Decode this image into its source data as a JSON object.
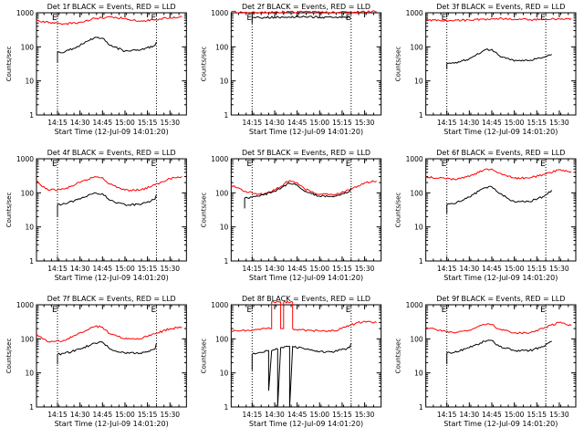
{
  "chart_data": [
    {
      "type": "line",
      "title": "Det 1f BLACK = Events, RED = LLD",
      "xlabel": "Start Time (12-Jul-09 14:01:20)",
      "ylabel": "Counts/sec",
      "yscale": "log",
      "ylim": [
        1,
        1000
      ],
      "ytick_labels": [
        "1",
        "10",
        "100",
        "1000"
      ],
      "xlim": [
        "14:01",
        "15:41"
      ],
      "xtick_labels": [
        "14:15",
        "14:30",
        "14:45",
        "15:00",
        "15:15",
        "15:30"
      ],
      "grid": false,
      "vlines": [
        "14:15",
        "15:21"
      ],
      "markers": [
        {
          "x": "14:15",
          "text": "E"
        },
        {
          "x": "15:21",
          "text": "E"
        }
      ],
      "series": [
        {
          "color": "#ff0000",
          "x": [
            "14:01",
            "14:10",
            "14:20",
            "14:30",
            "14:40",
            "14:50",
            "15:00",
            "15:10",
            "15:20",
            "15:30",
            "15:38"
          ],
          "y": [
            580,
            520,
            470,
            530,
            680,
            760,
            680,
            560,
            620,
            720,
            760
          ]
        },
        {
          "color": "#000000",
          "x": [
            "14:15",
            "14:15",
            "14:20",
            "14:30",
            "14:40",
            "14:45",
            "14:50",
            "15:00",
            "15:10",
            "15:20",
            "15:21"
          ],
          "y": [
            35,
            70,
            72,
            110,
            190,
            180,
            110,
            75,
            80,
            110,
            140
          ]
        }
      ]
    },
    {
      "type": "line",
      "title": "Det 2f BLACK = Events, RED = LLD",
      "xlabel": "Start Time (12-Jul-09 14:01:20)",
      "ylabel": "Counts/sec",
      "yscale": "log",
      "ylim": [
        1,
        1000
      ],
      "ytick_labels": [
        "1",
        "10",
        "100",
        "1000"
      ],
      "xlim": [
        "14:01",
        "15:41"
      ],
      "xtick_labels": [
        "14:15",
        "14:30",
        "14:45",
        "15:00",
        "15:15",
        "15:30"
      ],
      "grid": false,
      "vlines": [
        "14:15",
        "15:21"
      ],
      "markers": [
        {
          "x": "14:15",
          "text": "E"
        },
        {
          "x": "15:21",
          "text": "E"
        }
      ],
      "series": [
        {
          "color": "#ff0000",
          "x": [
            "14:01",
            "14:10",
            "14:20",
            "14:30",
            "14:40",
            "14:50",
            "15:00",
            "15:10",
            "15:20",
            "15:30",
            "15:38"
          ],
          "y": [
            1050,
            1020,
            1000,
            1030,
            1060,
            1080,
            1050,
            1020,
            1040,
            1060,
            1080
          ]
        },
        {
          "color": "#000000",
          "x": [
            "14:15",
            "14:15",
            "14:20",
            "14:30",
            "14:40",
            "14:50",
            "15:00",
            "15:10",
            "15:20",
            "15:21"
          ],
          "y": [
            480,
            720,
            720,
            740,
            750,
            760,
            740,
            730,
            740,
            650
          ]
        }
      ]
    },
    {
      "type": "line",
      "title": "Det 3f BLACK = Events, RED = LLD",
      "xlabel": "Start Time (12-Jul-09 14:01:20)",
      "ylabel": "Counts/sec",
      "yscale": "log",
      "ylim": [
        1,
        1000
      ],
      "ytick_labels": [
        "1",
        "10",
        "100",
        "1000"
      ],
      "xlim": [
        "14:01",
        "15:41"
      ],
      "xtick_labels": [
        "14:15",
        "14:30",
        "14:45",
        "15:00",
        "15:15",
        "15:30"
      ],
      "grid": false,
      "vlines": [
        "14:15",
        "15:21"
      ],
      "markers": [
        {
          "x": "14:15",
          "text": "E"
        },
        {
          "x": "15:21",
          "text": "E"
        }
      ],
      "series": [
        {
          "color": "#ff0000",
          "x": [
            "14:01",
            "14:10",
            "14:20",
            "14:30",
            "14:40",
            "14:50",
            "15:00",
            "15:10",
            "15:20",
            "15:30",
            "15:38"
          ],
          "y": [
            620,
            600,
            590,
            610,
            650,
            680,
            650,
            620,
            640,
            660,
            680
          ]
        },
        {
          "color": "#000000",
          "x": [
            "14:15",
            "14:15",
            "14:20",
            "14:30",
            "14:40",
            "14:45",
            "14:50",
            "15:00",
            "15:10",
            "15:20",
            "15:25"
          ],
          "y": [
            22,
            32,
            33,
            45,
            80,
            85,
            55,
            38,
            40,
            50,
            60
          ]
        }
      ]
    },
    {
      "type": "line",
      "title": "Det 4f BLACK = Events, RED = LLD",
      "xlabel": "Start Time (12-Jul-09 14:01:20)",
      "ylabel": "Counts/sec",
      "yscale": "log",
      "ylim": [
        1,
        1000
      ],
      "ytick_labels": [
        "1",
        "10",
        "100",
        "1000"
      ],
      "xlim": [
        "14:01",
        "15:41"
      ],
      "xtick_labels": [
        "14:15",
        "14:30",
        "14:45",
        "15:00",
        "15:15",
        "15:30"
      ],
      "grid": false,
      "vlines": [
        "14:15",
        "15:21"
      ],
      "markers": [
        {
          "x": "14:15",
          "text": "E"
        },
        {
          "x": "15:21",
          "text": "E"
        }
      ],
      "series": [
        {
          "color": "#ff0000",
          "x": [
            "14:01",
            "14:05",
            "14:10",
            "14:20",
            "14:30",
            "14:40",
            "14:45",
            "14:50",
            "15:00",
            "15:10",
            "15:20",
            "15:30",
            "15:38"
          ],
          "y": [
            220,
            150,
            120,
            130,
            200,
            300,
            280,
            180,
            120,
            120,
            170,
            260,
            300
          ]
        },
        {
          "color": "#000000",
          "x": [
            "14:15",
            "14:15",
            "14:20",
            "14:30",
            "14:40",
            "14:45",
            "14:50",
            "15:00",
            "15:10",
            "15:20",
            "15:21"
          ],
          "y": [
            20,
            45,
            48,
            65,
            100,
            95,
            60,
            45,
            45,
            65,
            90
          ]
        }
      ]
    },
    {
      "type": "line",
      "title": "Det 5f BLACK = Events, RED = LLD",
      "xlabel": "Start Time (12-Jul-09 14:01:20)",
      "ylabel": "Counts/sec",
      "yscale": "log",
      "ylim": [
        1,
        1000
      ],
      "ytick_labels": [
        "1",
        "10",
        "100",
        "1000"
      ],
      "xlim": [
        "14:01",
        "15:41"
      ],
      "xtick_labels": [
        "14:15",
        "14:30",
        "14:45",
        "15:00",
        "15:15",
        "15:30"
      ],
      "grid": false,
      "vlines": [
        "14:15",
        "15:21"
      ],
      "markers": [
        {
          "x": "14:15",
          "text": "E"
        },
        {
          "x": "15:21",
          "text": "E"
        }
      ],
      "series": [
        {
          "color": "#ff0000",
          "x": [
            "14:01",
            "14:05",
            "14:10",
            "14:20",
            "14:30",
            "14:40",
            "14:45",
            "14:50",
            "15:00",
            "15:10",
            "15:20",
            "15:30",
            "15:38"
          ],
          "y": [
            170,
            140,
            110,
            90,
            120,
            230,
            200,
            130,
            90,
            90,
            120,
            200,
            220
          ]
        },
        {
          "color": "#000000",
          "x": [
            "14:10",
            "14:10",
            "14:15",
            "14:20",
            "14:30",
            "14:40",
            "14:45",
            "14:50",
            "15:00",
            "15:10",
            "15:20",
            "15:21"
          ],
          "y": [
            35,
            70,
            75,
            80,
            110,
            190,
            170,
            110,
            80,
            80,
            110,
            140
          ]
        }
      ]
    },
    {
      "type": "line",
      "title": "Det 6f BLACK = Events, RED = LLD",
      "xlabel": "Start Time (12-Jul-09 14:01:20)",
      "ylabel": "Counts/sec",
      "yscale": "log",
      "ylim": [
        1,
        1000
      ],
      "ytick_labels": [
        "1",
        "10",
        "100",
        "1000"
      ],
      "xlim": [
        "14:01",
        "15:41"
      ],
      "xtick_labels": [
        "14:15",
        "14:30",
        "14:45",
        "15:00",
        "15:15",
        "15:30"
      ],
      "grid": false,
      "vlines": [
        "14:15",
        "15:21"
      ],
      "markers": [
        {
          "x": "14:15",
          "text": "E"
        },
        {
          "x": "15:21",
          "text": "E"
        }
      ],
      "series": [
        {
          "color": "#ff0000",
          "x": [
            "14:01",
            "14:10",
            "14:20",
            "14:30",
            "14:40",
            "14:45",
            "14:50",
            "15:00",
            "15:10",
            "15:20",
            "15:30",
            "15:38"
          ],
          "y": [
            300,
            270,
            250,
            300,
            480,
            500,
            380,
            270,
            270,
            350,
            480,
            420
          ]
        },
        {
          "color": "#000000",
          "x": [
            "14:15",
            "14:15",
            "14:20",
            "14:30",
            "14:40",
            "14:45",
            "14:50",
            "15:00",
            "15:10",
            "15:20",
            "15:25"
          ],
          "y": [
            25,
            45,
            48,
            75,
            140,
            150,
            95,
            55,
            55,
            80,
            120
          ]
        }
      ]
    },
    {
      "type": "line",
      "title": "Det 7f BLACK = Events, RED = LLD",
      "xlabel": "Start Time (12-Jul-09 14:01:20)",
      "ylabel": "Counts/sec",
      "yscale": "log",
      "ylim": [
        1,
        1000
      ],
      "ytick_labels": [
        "1",
        "10",
        "100",
        "1000"
      ],
      "xlim": [
        "14:01",
        "15:41"
      ],
      "xtick_labels": [
        "14:15",
        "14:30",
        "14:45",
        "15:00",
        "15:15",
        "15:30"
      ],
      "grid": false,
      "vlines": [
        "14:15",
        "15:21"
      ],
      "markers": [
        {
          "x": "14:15",
          "text": "E"
        },
        {
          "x": "15:21",
          "text": "E"
        }
      ],
      "series": [
        {
          "color": "#ff0000",
          "x": [
            "14:01",
            "14:05",
            "14:10",
            "14:20",
            "14:30",
            "14:40",
            "14:45",
            "14:50",
            "15:00",
            "15:10",
            "15:20",
            "15:30",
            "15:38"
          ],
          "y": [
            140,
            100,
            80,
            90,
            150,
            230,
            220,
            140,
            100,
            100,
            140,
            200,
            220
          ]
        },
        {
          "color": "#000000",
          "x": [
            "14:15",
            "14:15",
            "14:20",
            "14:30",
            "14:40",
            "14:45",
            "14:50",
            "15:00",
            "15:10",
            "15:20",
            "15:21"
          ],
          "y": [
            18,
            35,
            38,
            50,
            75,
            80,
            50,
            38,
            38,
            50,
            75
          ]
        }
      ]
    },
    {
      "type": "line",
      "title": "Det 8f BLACK = Events, RED = LLD",
      "xlabel": "Start Time (12-Jul-09 14:01:20)",
      "ylabel": "Counts/sec",
      "yscale": "log",
      "ylim": [
        1,
        1000
      ],
      "ytick_labels": [
        "1",
        "10",
        "100",
        "1000"
      ],
      "xlim": [
        "14:01",
        "15:41"
      ],
      "xtick_labels": [
        "14:15",
        "14:30",
        "14:45",
        "15:00",
        "15:15",
        "15:30"
      ],
      "grid": false,
      "vlines": [
        "14:15",
        "15:21"
      ],
      "markers": [
        {
          "x": "14:15",
          "text": "E"
        },
        {
          "x": "15:21",
          "text": "E"
        }
      ],
      "series": [
        {
          "color": "#ff0000",
          "x": [
            "14:01",
            "14:15",
            "14:25",
            "14:28",
            "14:28",
            "14:34",
            "14:34",
            "14:36",
            "14:36",
            "14:42",
            "14:42",
            "14:50",
            "15:00",
            "15:10",
            "15:20",
            "15:30",
            "15:38"
          ],
          "y": [
            170,
            180,
            200,
            200,
            1200,
            1200,
            200,
            200,
            1200,
            1200,
            200,
            180,
            170,
            170,
            250,
            330,
            300
          ]
        },
        {
          "color": "#000000",
          "x": [
            "14:15",
            "14:15",
            "14:20",
            "14:25",
            "14:26",
            "14:26",
            "14:28",
            "14:32",
            "14:32",
            "14:34",
            "14:40",
            "14:40",
            "14:42",
            "14:50",
            "15:00",
            "15:10",
            "15:20",
            "15:21"
          ],
          "y": [
            12,
            35,
            40,
            45,
            45,
            3,
            45,
            50,
            1,
            55,
            60,
            1,
            60,
            50,
            42,
            42,
            55,
            75
          ]
        }
      ]
    },
    {
      "type": "line",
      "title": "Det 9f BLACK = Events, RED = LLD",
      "xlabel": "Start Time (12-Jul-09 14:01:20)",
      "ylabel": "Counts/sec",
      "yscale": "log",
      "ylim": [
        1,
        1000
      ],
      "ytick_labels": [
        "1",
        "10",
        "100",
        "1000"
      ],
      "xlim": [
        "14:01",
        "15:41"
      ],
      "xtick_labels": [
        "14:15",
        "14:30",
        "14:45",
        "15:00",
        "15:15",
        "15:30"
      ],
      "grid": false,
      "vlines": [
        "14:15",
        "15:21"
      ],
      "markers": [
        {
          "x": "14:15",
          "text": "E"
        },
        {
          "x": "15:21",
          "text": "E"
        }
      ],
      "series": [
        {
          "color": "#ff0000",
          "x": [
            "14:01",
            "14:10",
            "14:20",
            "14:30",
            "14:40",
            "14:45",
            "14:50",
            "15:00",
            "15:10",
            "15:20",
            "15:30",
            "15:38"
          ],
          "y": [
            220,
            180,
            150,
            180,
            260,
            260,
            190,
            150,
            150,
            210,
            300,
            250
          ]
        },
        {
          "color": "#000000",
          "x": [
            "14:15",
            "14:15",
            "14:20",
            "14:30",
            "14:40",
            "14:45",
            "14:50",
            "15:00",
            "15:10",
            "15:20",
            "15:25"
          ],
          "y": [
            18,
            38,
            40,
            55,
            85,
            90,
            60,
            45,
            45,
            60,
            85
          ]
        }
      ]
    }
  ]
}
